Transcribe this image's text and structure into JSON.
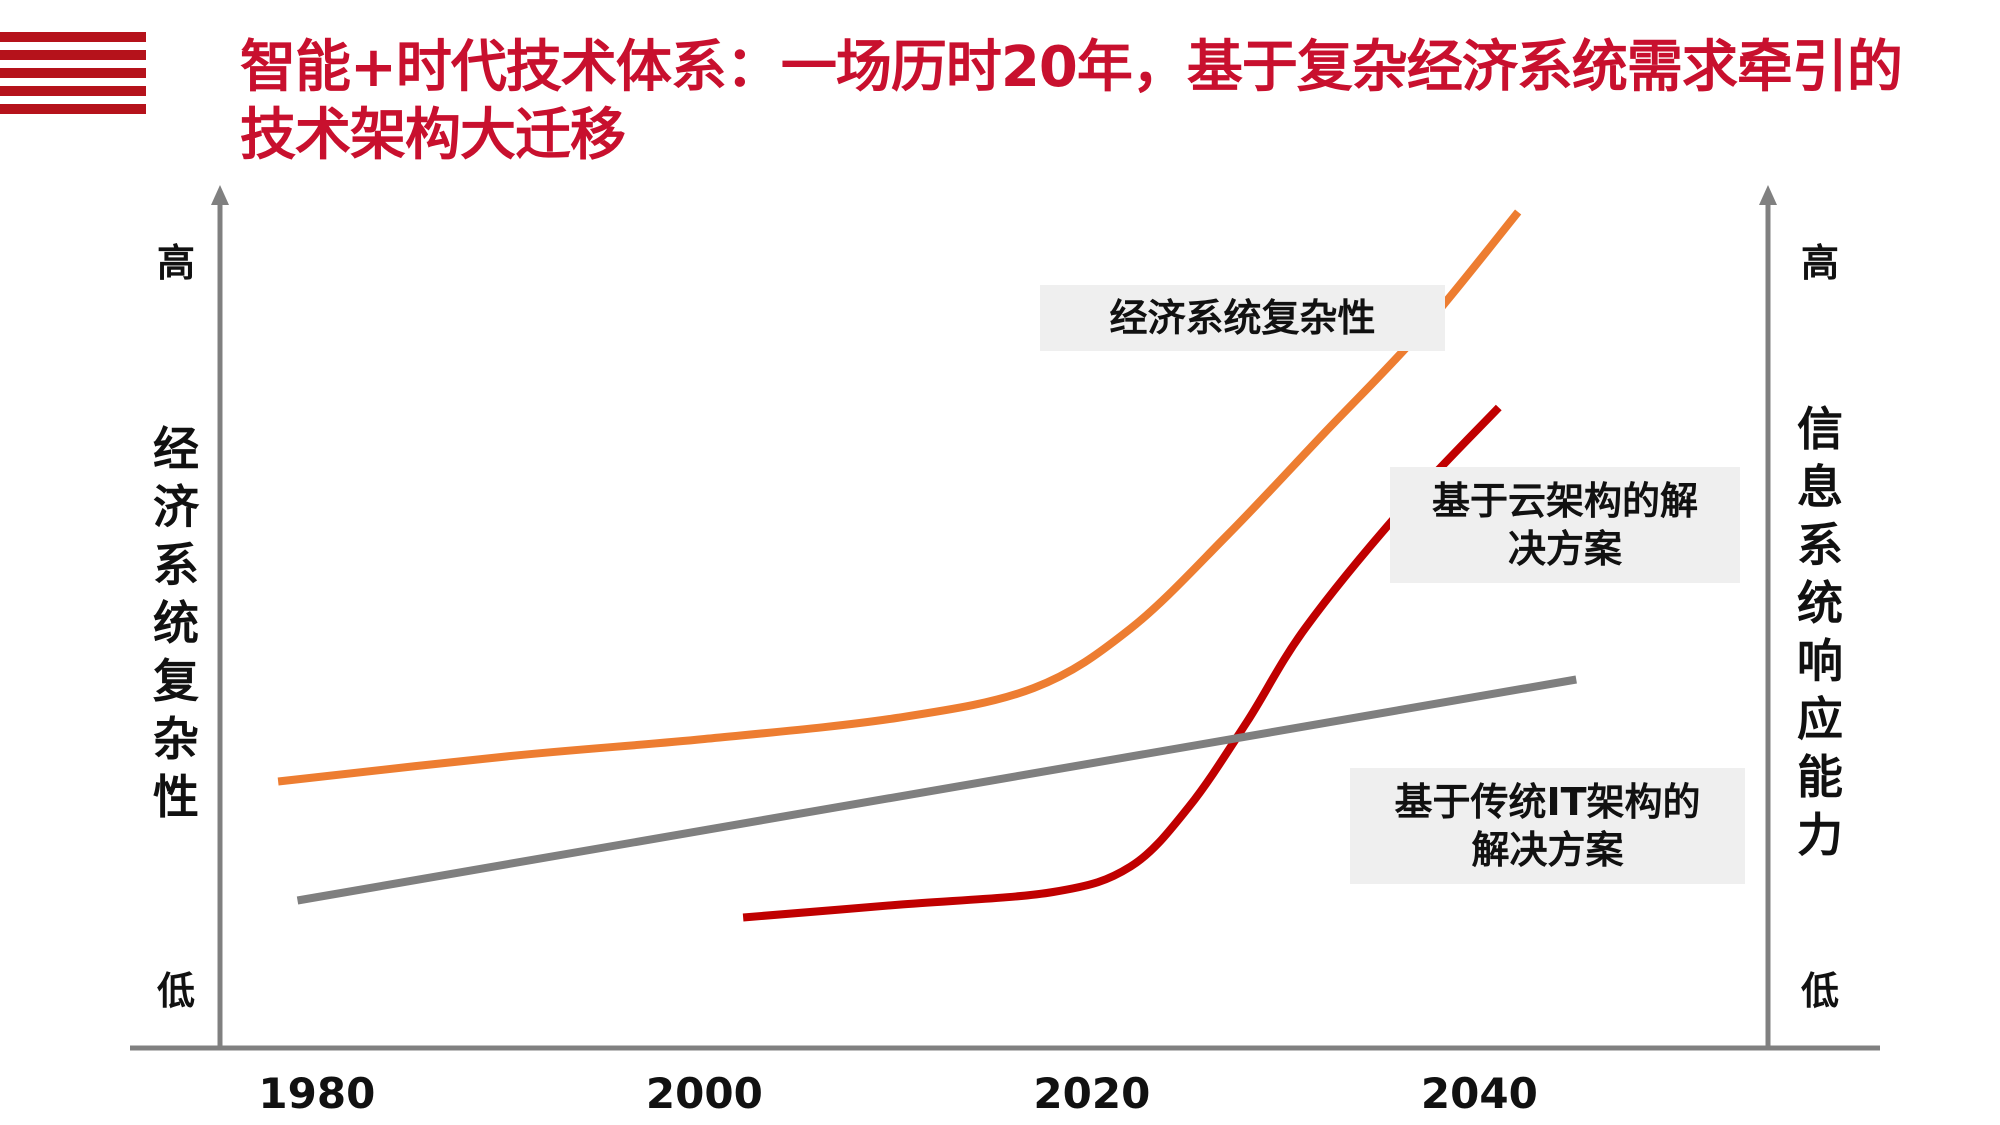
{
  "slide": {
    "title": "智能+时代技术体系：一场历时20年，基于复杂经济系统需求牵引的技术架构大迁移"
  },
  "colors": {
    "title": "#c8102e",
    "stripes": "#b5121b",
    "economy_curve": "#ed7d31",
    "cloud_curve": "#c00000",
    "traditional_line": "#7f7f7f",
    "axis": "#808080"
  },
  "chart_data": {
    "type": "line",
    "x_ticks": [
      1980,
      2000,
      2020,
      2040
    ],
    "xlim": [
      1975,
      2055
    ],
    "left_axis": {
      "label": "经济系统复杂性",
      "high": "高",
      "low": "低"
    },
    "right_axis": {
      "label": "信息系统响应能力",
      "high": "高",
      "low": "低"
    },
    "y_scale_note": "qualitative (低 → 高), values on 0–100 relative scale",
    "ylim": [
      0,
      100
    ],
    "series": [
      {
        "name": "经济系统复杂性",
        "color": "#ed7d31",
        "points": [
          [
            1978,
            31
          ],
          [
            1990,
            34
          ],
          [
            2000,
            36
          ],
          [
            2010,
            38.5
          ],
          [
            2017,
            42
          ],
          [
            2022,
            49
          ],
          [
            2027,
            60
          ],
          [
            2032,
            72
          ],
          [
            2037,
            84
          ],
          [
            2042,
            98
          ]
        ]
      },
      {
        "name": "基于云架构的解决方案",
        "color": "#c00000",
        "points": [
          [
            2002,
            15
          ],
          [
            2010,
            16.5
          ],
          [
            2018,
            18
          ],
          [
            2022,
            21
          ],
          [
            2025,
            28
          ],
          [
            2028,
            38
          ],
          [
            2031,
            49
          ],
          [
            2036,
            63
          ],
          [
            2041,
            75
          ]
        ]
      },
      {
        "name": "基于传统IT架构的解决方案",
        "color": "#7f7f7f",
        "points": [
          [
            1979,
            17
          ],
          [
            2045,
            43
          ]
        ]
      }
    ]
  }
}
